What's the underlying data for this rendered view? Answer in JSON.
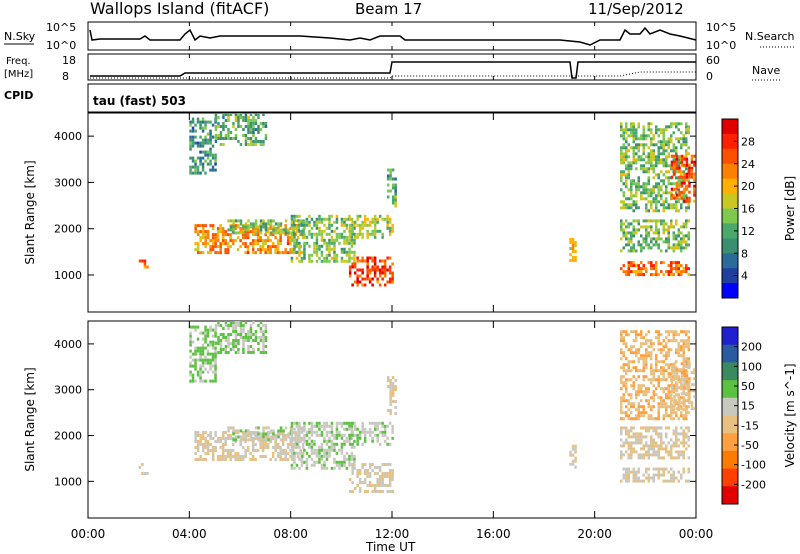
{
  "header": {
    "title": "Wallops Island (fitACF)",
    "beam": "Beam 17",
    "date": "11/Sep/2012"
  },
  "top_panels": {
    "nsky_label": "N.Sky",
    "nsearch_label": "N.Search",
    "noise_ticks": [
      "10^5",
      "10^0"
    ],
    "freq_label": "Freq.",
    "freq_unit": "[MHz]",
    "freq_ticks": [
      "18",
      "8"
    ],
    "nave_label": "Nave",
    "nave_ticks": [
      "60",
      "0"
    ],
    "cpid_label": "CPID",
    "cpid_value": "tau (fast) 503"
  },
  "x_axis": {
    "label": "Time UT",
    "ticks": [
      "00:00",
      "04:00",
      "08:00",
      "12:00",
      "16:00",
      "20:00",
      "00:00"
    ],
    "range_hours": [
      0,
      24
    ]
  },
  "colors": {
    "power_scale": [
      "#0000ff",
      "#1f3fa0",
      "#2a6b9a",
      "#3a8f70",
      "#4aa86a",
      "#7ec850",
      "#c8c820",
      "#ffb000",
      "#ff8000",
      "#ff5000",
      "#ff2000",
      "#e00000"
    ],
    "velocity_scale": [
      "#2020d0",
      "#2a5aa0",
      "#3a8a60",
      "#5cc040",
      "#c8c8c0",
      "#e8c080",
      "#ffa040",
      "#ff7a00",
      "#ff4000",
      "#e00000"
    ]
  },
  "chart_data": [
    {
      "type": "heatmap",
      "title": "Power",
      "xlabel": "Time UT",
      "ylabel": "Slant Range [km]",
      "xlim": [
        0,
        24
      ],
      "ylim": [
        200,
        4500
      ],
      "yticks": [
        "1000",
        "2000",
        "3000",
        "4000"
      ],
      "colorbar_label": "Power [dB]",
      "colorbar_ticks": [
        "4",
        "8",
        "12",
        "16",
        "20",
        "24",
        "28"
      ],
      "colorbar_range": [
        0,
        32
      ],
      "regions": [
        {
          "t0": 2.0,
          "t1": 2.3,
          "r0": 1200,
          "r1": 1400,
          "value": 24
        },
        {
          "t0": 4.0,
          "t1": 5.0,
          "r0": 3200,
          "r1": 4400,
          "value": 10
        },
        {
          "t0": 4.2,
          "t1": 8.5,
          "r0": 1500,
          "r1": 2100,
          "value": 22
        },
        {
          "t0": 5.5,
          "t1": 8.5,
          "r0": 1900,
          "r1": 2200,
          "value": 14
        },
        {
          "t0": 5.0,
          "t1": 7.0,
          "r0": 3800,
          "r1": 4500,
          "value": 12
        },
        {
          "t0": 8.0,
          "t1": 10.5,
          "r0": 1300,
          "r1": 2300,
          "value": 14
        },
        {
          "t0": 10.3,
          "t1": 12.0,
          "r0": 800,
          "r1": 1400,
          "value": 26
        },
        {
          "t0": 10.3,
          "t1": 12.0,
          "r0": 1800,
          "r1": 2300,
          "value": 16
        },
        {
          "t0": 11.8,
          "t1": 12.1,
          "r0": 2500,
          "r1": 3300,
          "value": 12
        },
        {
          "t0": 19.0,
          "t1": 19.2,
          "r0": 1300,
          "r1": 1800,
          "value": 20
        },
        {
          "t0": 21.0,
          "t1": 23.7,
          "r0": 1000,
          "r1": 1300,
          "value": 24
        },
        {
          "t0": 21.0,
          "t1": 23.7,
          "r0": 1500,
          "r1": 2200,
          "value": 14
        },
        {
          "t0": 21.0,
          "t1": 23.7,
          "r0": 2400,
          "r1": 4300,
          "value": 14
        },
        {
          "t0": 23.0,
          "t1": 23.9,
          "r0": 2600,
          "r1": 3600,
          "value": 26
        }
      ]
    },
    {
      "type": "heatmap",
      "title": "Velocity",
      "xlabel": "Time UT",
      "ylabel": "Slant Range [km]",
      "xlim": [
        0,
        24
      ],
      "ylim": [
        200,
        4500
      ],
      "yticks": [
        "1000",
        "2000",
        "3000",
        "4000"
      ],
      "colorbar_label": "Velocity [m s^-1]",
      "colorbar_ticks": [
        "200",
        "100",
        "50",
        "15",
        "-15",
        "-50",
        "-100",
        "-200"
      ],
      "colorbar_range": [
        -250,
        250
      ],
      "regions": [
        {
          "t0": 2.0,
          "t1": 2.3,
          "r0": 1200,
          "r1": 1400,
          "value": 0
        },
        {
          "t0": 4.0,
          "t1": 5.0,
          "r0": 3200,
          "r1": 4400,
          "value": 60
        },
        {
          "t0": 4.2,
          "t1": 8.5,
          "r0": 1500,
          "r1": 2100,
          "value": 0
        },
        {
          "t0": 5.5,
          "t1": 8.5,
          "r0": 1900,
          "r1": 2200,
          "value": 30
        },
        {
          "t0": 5.0,
          "t1": 7.0,
          "r0": 3800,
          "r1": 4500,
          "value": 60
        },
        {
          "t0": 8.0,
          "t1": 10.5,
          "r0": 1300,
          "r1": 2300,
          "value": 40
        },
        {
          "t0": 10.3,
          "t1": 12.0,
          "r0": 800,
          "r1": 1400,
          "value": 0
        },
        {
          "t0": 10.3,
          "t1": 12.0,
          "r0": 1800,
          "r1": 2300,
          "value": 50
        },
        {
          "t0": 11.8,
          "t1": 12.1,
          "r0": 2500,
          "r1": 3300,
          "value": 0
        },
        {
          "t0": 19.0,
          "t1": 19.2,
          "r0": 1300,
          "r1": 1800,
          "value": 0
        },
        {
          "t0": 21.0,
          "t1": 23.7,
          "r0": 1000,
          "r1": 1300,
          "value": 0
        },
        {
          "t0": 21.0,
          "t1": 23.7,
          "r0": 1500,
          "r1": 2200,
          "value": 0
        },
        {
          "t0": 21.0,
          "t1": 23.7,
          "r0": 2400,
          "r1": 4300,
          "value": -40
        },
        {
          "t0": 23.0,
          "t1": 23.9,
          "r0": 2600,
          "r1": 3600,
          "value": -20
        }
      ]
    }
  ]
}
